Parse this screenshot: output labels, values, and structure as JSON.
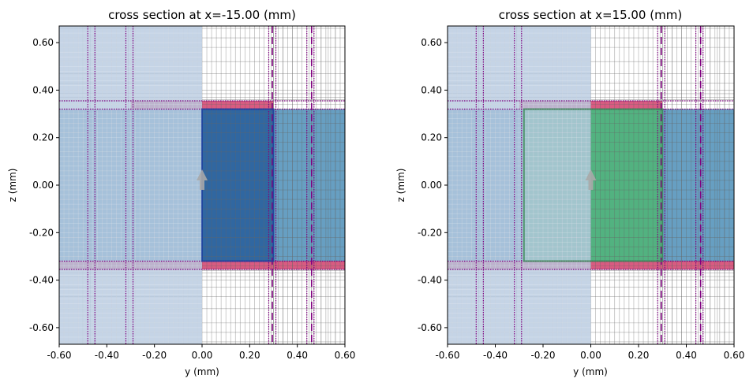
{
  "panels": [
    {
      "title": "cross section at x=-15.00 (mm)",
      "xlabel": "y (mm)",
      "ylabel": "z (mm)",
      "xlim": [
        -0.6,
        0.6
      ],
      "ylim": [
        -0.67,
        0.67
      ],
      "xticks": [
        "-0.60",
        "-0.40",
        "-0.20",
        "0.00",
        "0.20",
        "0.40",
        "0.60"
      ],
      "yticks": [
        "0.60",
        "0.40",
        "0.20",
        "0.00",
        "-0.20",
        "-0.40",
        "-0.60"
      ],
      "core_color": "#2f66a0",
      "variant": "left"
    },
    {
      "title": "cross section at x=15.00 (mm)",
      "xlabel": "y (mm)",
      "ylabel": "z (mm)",
      "xlim": [
        -0.6,
        0.6
      ],
      "ylim": [
        -0.67,
        0.67
      ],
      "xticks": [
        "-0.60",
        "-0.40",
        "-0.20",
        "0.00",
        "0.20",
        "0.40",
        "0.60"
      ],
      "yticks": [
        "0.60",
        "0.40",
        "0.20",
        "0.00",
        "-0.20",
        "-0.40",
        "-0.60"
      ],
      "core_color": "#52b27e",
      "variant": "right"
    }
  ],
  "colors": {
    "substrate": "#5f9abf",
    "metal": "#d6527a",
    "pml_overlay": "#b6c9e0",
    "grid": "#666666",
    "monitor_lines": "#800080",
    "source_arrow": "#a8a8a8"
  },
  "structures": {
    "substrate_z": [
      -0.32,
      0.32
    ],
    "substrate_y": [
      -0.6,
      0.6
    ],
    "metal_top_z": [
      0.32,
      0.355
    ],
    "metal_bottom_z": [
      -0.355,
      -0.32
    ],
    "pml_overlay_y": [
      -0.6,
      0.0
    ],
    "source_arrow_at": [
      0.0,
      0.02
    ],
    "left": {
      "core_y": [
        0.0,
        0.3
      ],
      "core_z": [
        -0.32,
        0.32
      ],
      "metal_top_y": [
        -0.3,
        0.3
      ],
      "metal_bottom_y": [
        -0.6,
        0.6
      ]
    },
    "right": {
      "core_y": [
        -0.28,
        0.3
      ],
      "core_z": [
        -0.32,
        0.32
      ],
      "metal_top_y": [
        -0.3,
        0.3
      ],
      "metal_bottom_y": [
        -0.6,
        0.6
      ]
    }
  },
  "monitor_dotted_y": [
    -0.48,
    -0.45,
    -0.32,
    -0.29,
    0.28,
    0.31,
    0.44,
    0.47
  ],
  "monitor_dashed_y": [
    0.295,
    0.46
  ],
  "monitor_dotted_z": [
    0.355,
    0.32,
    -0.32,
    -0.355
  ]
}
